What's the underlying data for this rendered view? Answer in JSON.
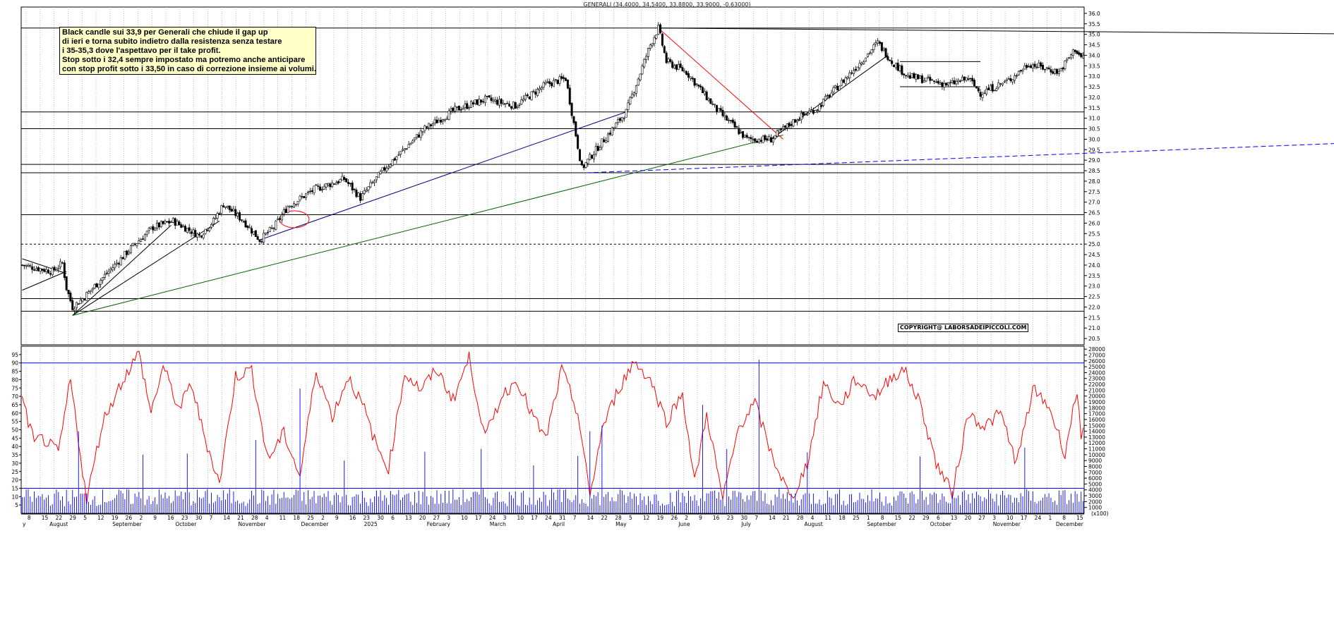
{
  "title": "GENERALI (34.4000, 34.5400, 33.8800, 33.9000, -0.63000)",
  "note_lines": [
    "Black candle sui 33,9 per Generali che chiude il gap up",
    "di ieri e torna subito indietro dalla resistenza senza testare",
    "i 35-35,3 dove l'aspettavo per il take profit.",
    "Stop sotto i 32,4 sempre impostato ma potremo anche anticipare",
    "con stop profit sotto i 33,50 in caso di correzione insieme ai volumi."
  ],
  "copyright": "COPYRIGHT@ LABORSADEIPICCOLI.COM",
  "colors": {
    "candle": "#000000",
    "oscillator": "#ff0000",
    "volume": "#0000ff",
    "support_lines": "#000000",
    "trend_blue": "#000080",
    "trend_green": "#006400",
    "trend_dashed": "#0000ff",
    "marker_circle": "#ff0000"
  },
  "chart_data": {
    "type": "candlestick",
    "price_axis": {
      "ylim": [
        20.2,
        36.3
      ],
      "ticks": [
        "20.5",
        "21.0",
        "21.5",
        "22.0",
        "22.5",
        "23.0",
        "23.5",
        "24.0",
        "24.5",
        "25.0",
        "25.5",
        "26.0",
        "26.5",
        "27.0",
        "27.5",
        "28.0",
        "28.5",
        "29.0",
        "29.5",
        "30.0",
        "30.5",
        "31.0",
        "31.5",
        "32.0",
        "32.5",
        "33.0",
        "33.5",
        "34.0",
        "34.5",
        "35.0",
        "35.5",
        "36.0"
      ]
    },
    "oscillator_axis": {
      "ylim": [
        0,
        100
      ],
      "ticks": [
        "5",
        "10",
        "15",
        "20",
        "25",
        "30",
        "35",
        "40",
        "45",
        "50",
        "55",
        "60",
        "65",
        "70",
        "75",
        "80",
        "85",
        "90",
        "95"
      ]
    },
    "volume_axis": {
      "ylim": [
        0,
        28500
      ],
      "ticks": [
        "1000",
        "2000",
        "3000",
        "4000",
        "5000",
        "6000",
        "7000",
        "8000",
        "9000",
        "10000",
        "11000",
        "12000",
        "13000",
        "14000",
        "15000",
        "16000",
        "17000",
        "18000",
        "19000",
        "20000",
        "21000",
        "22000",
        "23000",
        "24000",
        "25000",
        "26000",
        "27000",
        "28000"
      ],
      "unit": "(x100)"
    },
    "x_day_labels": [
      "8",
      "15",
      "22",
      "29",
      "5",
      "12",
      "19",
      "26",
      "2",
      "9",
      "16",
      "23",
      "30",
      "7",
      "14",
      "21",
      "28",
      "4",
      "11",
      "18",
      "25",
      "2",
      "9",
      "16",
      "23",
      "30",
      "6",
      "13",
      "20",
      "27",
      "3",
      "10",
      "17",
      "24",
      "3",
      "10",
      "17",
      "24",
      "31",
      "7",
      "14",
      "22",
      "28",
      "5",
      "12",
      "19",
      "26",
      "2",
      "9",
      "16",
      "23",
      "30",
      "7",
      "14",
      "21",
      "28",
      "4",
      "11",
      "18",
      "25",
      "1",
      "8",
      "15",
      "22",
      "29",
      "6",
      "13",
      "20",
      "27",
      "3",
      "10",
      "17",
      "24",
      "1",
      "8",
      "15"
    ],
    "x_month_labels": [
      "y",
      "August",
      "September",
      "October",
      "November",
      "December",
      "2025",
      "February",
      "March",
      "April",
      "May",
      "June",
      "July",
      "August",
      "September",
      "October",
      "November",
      "December"
    ],
    "oscillator_levels": [
      90,
      15
    ],
    "horizontal_levels": [
      35.3,
      31.3,
      30.5,
      28.8,
      28.4,
      26.4,
      22.4,
      21.8
    ],
    "dotted_level": 25.0,
    "price_anchors": [
      [
        0,
        24.0
      ],
      [
        15,
        23.7
      ],
      [
        20,
        24.1
      ],
      [
        22,
        22.9
      ],
      [
        25,
        22.0
      ],
      [
        30,
        22.4
      ],
      [
        40,
        23.4
      ],
      [
        55,
        24.9
      ],
      [
        65,
        25.8
      ],
      [
        75,
        26.1
      ],
      [
        88,
        25.4
      ],
      [
        95,
        26.1
      ],
      [
        100,
        26.9
      ],
      [
        110,
        26.1
      ],
      [
        118,
        25.2
      ],
      [
        125,
        25.8
      ],
      [
        132,
        26.8
      ],
      [
        145,
        27.6
      ],
      [
        160,
        28.1
      ],
      [
        168,
        27.2
      ],
      [
        180,
        28.6
      ],
      [
        200,
        30.5
      ],
      [
        215,
        31.4
      ],
      [
        230,
        31.9
      ],
      [
        245,
        31.6
      ],
      [
        260,
        32.6
      ],
      [
        270,
        32.9
      ],
      [
        278,
        28.6
      ],
      [
        285,
        29.5
      ],
      [
        300,
        31.3
      ],
      [
        312,
        34.5
      ],
      [
        316,
        35.3
      ],
      [
        320,
        33.7
      ],
      [
        330,
        33.2
      ],
      [
        345,
        31.4
      ],
      [
        360,
        30.0
      ],
      [
        372,
        30.0
      ],
      [
        385,
        31.0
      ],
      [
        395,
        31.5
      ],
      [
        410,
        33.0
      ],
      [
        425,
        34.6
      ],
      [
        432,
        33.7
      ],
      [
        440,
        33.0
      ],
      [
        460,
        32.6
      ],
      [
        470,
        32.9
      ],
      [
        476,
        32.2
      ],
      [
        490,
        32.8
      ],
      [
        500,
        33.6
      ],
      [
        515,
        33.2
      ],
      [
        523,
        34.3
      ],
      [
        526,
        33.9
      ]
    ],
    "oscillator_anchors": [
      [
        0,
        68
      ],
      [
        6,
        42
      ],
      [
        10,
        45
      ],
      [
        18,
        36
      ],
      [
        24,
        80
      ],
      [
        32,
        8
      ],
      [
        40,
        55
      ],
      [
        50,
        80
      ],
      [
        58,
        96
      ],
      [
        64,
        60
      ],
      [
        70,
        88
      ],
      [
        78,
        62
      ],
      [
        84,
        78
      ],
      [
        90,
        48
      ],
      [
        98,
        18
      ],
      [
        106,
        82
      ],
      [
        114,
        86
      ],
      [
        122,
        32
      ],
      [
        130,
        48
      ],
      [
        138,
        22
      ],
      [
        146,
        86
      ],
      [
        154,
        58
      ],
      [
        162,
        82
      ],
      [
        170,
        62
      ],
      [
        176,
        40
      ],
      [
        182,
        27
      ],
      [
        190,
        84
      ],
      [
        198,
        74
      ],
      [
        206,
        86
      ],
      [
        214,
        68
      ],
      [
        222,
        93
      ],
      [
        230,
        45
      ],
      [
        238,
        70
      ],
      [
        246,
        80
      ],
      [
        252,
        62
      ],
      [
        260,
        44
      ],
      [
        268,
        86
      ],
      [
        276,
        60
      ],
      [
        282,
        10
      ],
      [
        288,
        50
      ],
      [
        296,
        74
      ],
      [
        304,
        91
      ],
      [
        312,
        80
      ],
      [
        320,
        55
      ],
      [
        328,
        72
      ],
      [
        334,
        18
      ],
      [
        340,
        60
      ],
      [
        348,
        8
      ],
      [
        356,
        52
      ],
      [
        364,
        66
      ],
      [
        372,
        36
      ],
      [
        382,
        8
      ],
      [
        390,
        30
      ],
      [
        398,
        78
      ],
      [
        406,
        64
      ],
      [
        414,
        80
      ],
      [
        424,
        70
      ],
      [
        432,
        82
      ],
      [
        438,
        86
      ],
      [
        446,
        66
      ],
      [
        454,
        30
      ],
      [
        462,
        12
      ],
      [
        470,
        60
      ],
      [
        478,
        52
      ],
      [
        486,
        60
      ],
      [
        494,
        30
      ],
      [
        502,
        74
      ],
      [
        510,
        64
      ],
      [
        518,
        36
      ],
      [
        524,
        74
      ],
      [
        526,
        48
      ]
    ],
    "volume_spikes": [
      [
        28,
        14000
      ],
      [
        60,
        10000
      ],
      [
        82,
        10200
      ],
      [
        116,
        12500
      ],
      [
        138,
        21300
      ],
      [
        160,
        9000
      ],
      [
        200,
        10500
      ],
      [
        228,
        11000
      ],
      [
        254,
        8200
      ],
      [
        276,
        9800
      ],
      [
        282,
        14000
      ],
      [
        288,
        15000
      ],
      [
        338,
        18500
      ],
      [
        350,
        11000
      ],
      [
        366,
        26200
      ],
      [
        390,
        10400
      ],
      [
        446,
        9700
      ],
      [
        498,
        11200
      ]
    ]
  }
}
